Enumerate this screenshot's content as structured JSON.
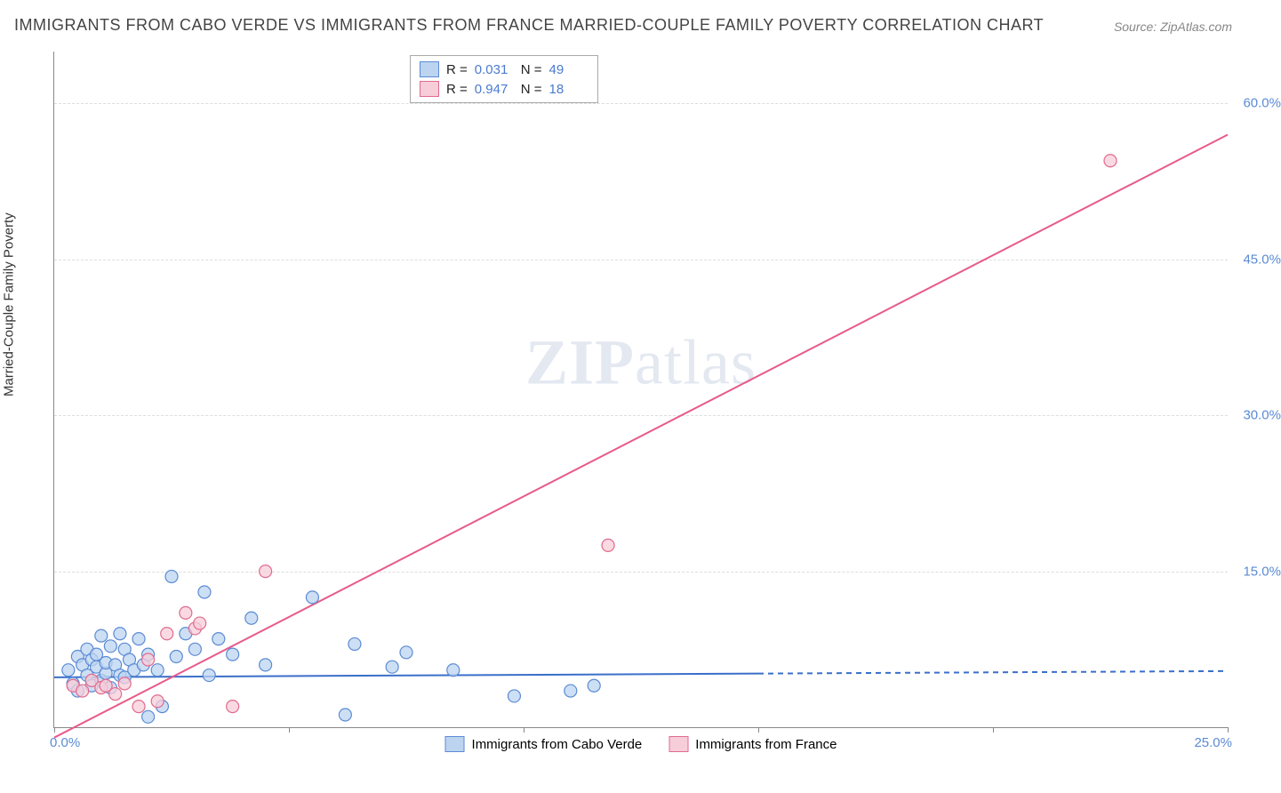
{
  "title": "IMMIGRANTS FROM CABO VERDE VS IMMIGRANTS FROM FRANCE MARRIED-COUPLE FAMILY POVERTY CORRELATION CHART",
  "source": "Source: ZipAtlas.com",
  "watermark_a": "ZIP",
  "watermark_b": "atlas",
  "y_axis_label": "Married-Couple Family Poverty",
  "chart": {
    "type": "scatter",
    "xlim": [
      0,
      25
    ],
    "ylim": [
      0,
      65
    ],
    "x_ticks": [
      0,
      5,
      10,
      15,
      20,
      25
    ],
    "x_tick_labels": {
      "start": "0.0%",
      "end": "25.0%"
    },
    "y_ticks": [
      15,
      30,
      45,
      60
    ],
    "y_tick_labels": [
      "15.0%",
      "30.0%",
      "45.0%",
      "60.0%"
    ],
    "background_color": "#ffffff",
    "grid_color": "#dddddd",
    "axis_color": "#888888",
    "tick_label_color": "#5b8bd4",
    "series": [
      {
        "name": "Immigrants from Cabo Verde",
        "marker_fill": "#bcd4f0",
        "marker_stroke": "#5b8bd4",
        "line_color": "#3a6fc9",
        "line_dash_after_x": 15,
        "r_label": "R =",
        "r_value": "0.031",
        "n_label": "N =",
        "n_value": "49",
        "trend": {
          "x1": 0,
          "y1": 4.8,
          "x2": 25,
          "y2": 5.4
        },
        "points": [
          [
            0.3,
            5.5
          ],
          [
            0.4,
            4.2
          ],
          [
            0.5,
            6.8
          ],
          [
            0.5,
            3.5
          ],
          [
            0.6,
            6.0
          ],
          [
            0.7,
            5.0
          ],
          [
            0.7,
            7.5
          ],
          [
            0.8,
            4.0
          ],
          [
            0.8,
            6.5
          ],
          [
            0.9,
            5.8
          ],
          [
            0.9,
            7.0
          ],
          [
            1.0,
            4.5
          ],
          [
            1.0,
            8.8
          ],
          [
            1.1,
            5.2
          ],
          [
            1.1,
            6.2
          ],
          [
            1.2,
            3.8
          ],
          [
            1.2,
            7.8
          ],
          [
            1.3,
            6.0
          ],
          [
            1.4,
            5.0
          ],
          [
            1.4,
            9.0
          ],
          [
            1.5,
            7.5
          ],
          [
            1.5,
            4.8
          ],
          [
            1.6,
            6.5
          ],
          [
            1.7,
            5.5
          ],
          [
            1.8,
            8.5
          ],
          [
            1.9,
            6.0
          ],
          [
            2.0,
            1.0
          ],
          [
            2.0,
            7.0
          ],
          [
            2.2,
            5.5
          ],
          [
            2.3,
            2.0
          ],
          [
            2.5,
            14.5
          ],
          [
            2.6,
            6.8
          ],
          [
            2.8,
            9.0
          ],
          [
            3.0,
            7.5
          ],
          [
            3.2,
            13.0
          ],
          [
            3.3,
            5.0
          ],
          [
            3.5,
            8.5
          ],
          [
            3.8,
            7.0
          ],
          [
            4.2,
            10.5
          ],
          [
            4.5,
            6.0
          ],
          [
            5.5,
            12.5
          ],
          [
            6.2,
            1.2
          ],
          [
            6.4,
            8.0
          ],
          [
            7.2,
            5.8
          ],
          [
            7.5,
            7.2
          ],
          [
            8.5,
            5.5
          ],
          [
            9.8,
            3.0
          ],
          [
            11.0,
            3.5
          ],
          [
            11.5,
            4.0
          ]
        ]
      },
      {
        "name": "Immigrants from France",
        "marker_fill": "#f7cdd9",
        "marker_stroke": "#e06b8f",
        "line_color": "#e85a8a",
        "r_label": "R =",
        "r_value": "0.947",
        "n_label": "N =",
        "n_value": "18",
        "trend": {
          "x1": 0,
          "y1": -1.0,
          "x2": 25,
          "y2": 57.0
        },
        "points": [
          [
            0.4,
            4.0
          ],
          [
            0.6,
            3.5
          ],
          [
            0.8,
            4.5
          ],
          [
            1.0,
            3.8
          ],
          [
            1.1,
            4.0
          ],
          [
            1.3,
            3.2
          ],
          [
            1.5,
            4.2
          ],
          [
            1.8,
            2.0
          ],
          [
            2.0,
            6.5
          ],
          [
            2.2,
            2.5
          ],
          [
            2.4,
            9.0
          ],
          [
            2.8,
            11.0
          ],
          [
            3.0,
            9.5
          ],
          [
            3.1,
            10.0
          ],
          [
            3.8,
            2.0
          ],
          [
            4.5,
            15.0
          ],
          [
            11.8,
            17.5
          ],
          [
            22.5,
            54.5
          ]
        ]
      }
    ],
    "marker_radius": 7,
    "marker_stroke_width": 1.2,
    "trend_line_width": 2
  },
  "legend_bottom_label_1": "Immigrants from Cabo Verde",
  "legend_bottom_label_2": "Immigrants from France"
}
